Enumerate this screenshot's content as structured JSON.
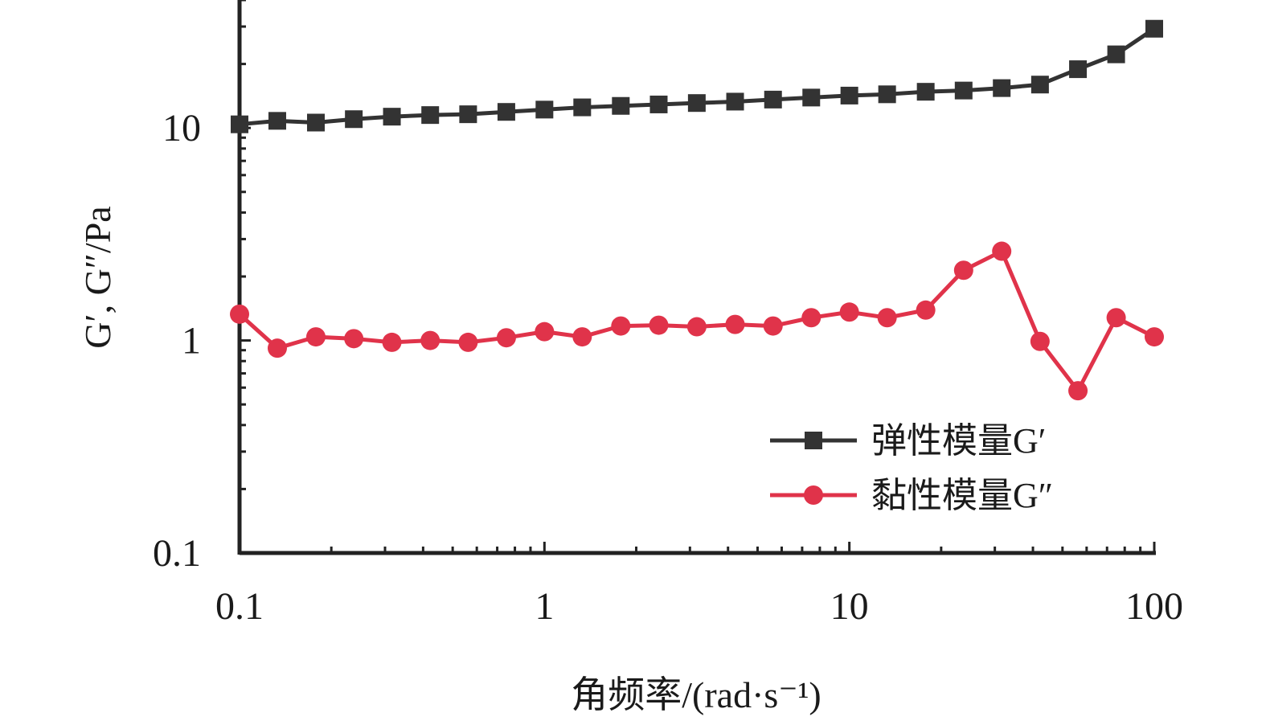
{
  "chart_data": {
    "type": "line",
    "xlabel": "角频率/(rad·s⁻¹)",
    "ylabel": "G′, G″/Pa",
    "x_scale": "log",
    "y_scale": "log",
    "xlim": [
      0.1,
      100
    ],
    "ylim": [
      0.1,
      40
    ],
    "x_ticks": [
      "0.1",
      "1",
      "10",
      "100"
    ],
    "y_ticks": [
      "0.1",
      "1",
      "10"
    ],
    "grid": false,
    "legend_position": "bottom-right",
    "x": [
      0.1,
      0.133,
      0.178,
      0.237,
      0.316,
      0.422,
      0.562,
      0.75,
      1.0,
      1.33,
      1.78,
      2.37,
      3.16,
      4.22,
      5.62,
      7.5,
      10.0,
      13.3,
      17.8,
      23.7,
      31.6,
      42.2,
      56.2,
      75.0,
      100.0
    ],
    "series": [
      {
        "name": "弹性模量G′",
        "color": "#333333",
        "marker": "square",
        "values": [
          10.4,
          10.8,
          10.6,
          11.0,
          11.3,
          11.5,
          11.6,
          11.9,
          12.2,
          12.5,
          12.7,
          12.9,
          13.1,
          13.3,
          13.6,
          13.9,
          14.2,
          14.4,
          14.8,
          15.0,
          15.4,
          16.0,
          18.9,
          22.2,
          29.3
        ]
      },
      {
        "name": "黏性模量G″",
        "color": "#e0334a",
        "marker": "circle",
        "values": [
          1.33,
          0.92,
          1.04,
          1.02,
          0.98,
          1.0,
          0.98,
          1.03,
          1.1,
          1.04,
          1.17,
          1.18,
          1.16,
          1.19,
          1.17,
          1.28,
          1.36,
          1.28,
          1.39,
          2.14,
          2.63,
          0.99,
          0.58,
          1.28,
          1.04
        ]
      }
    ]
  }
}
